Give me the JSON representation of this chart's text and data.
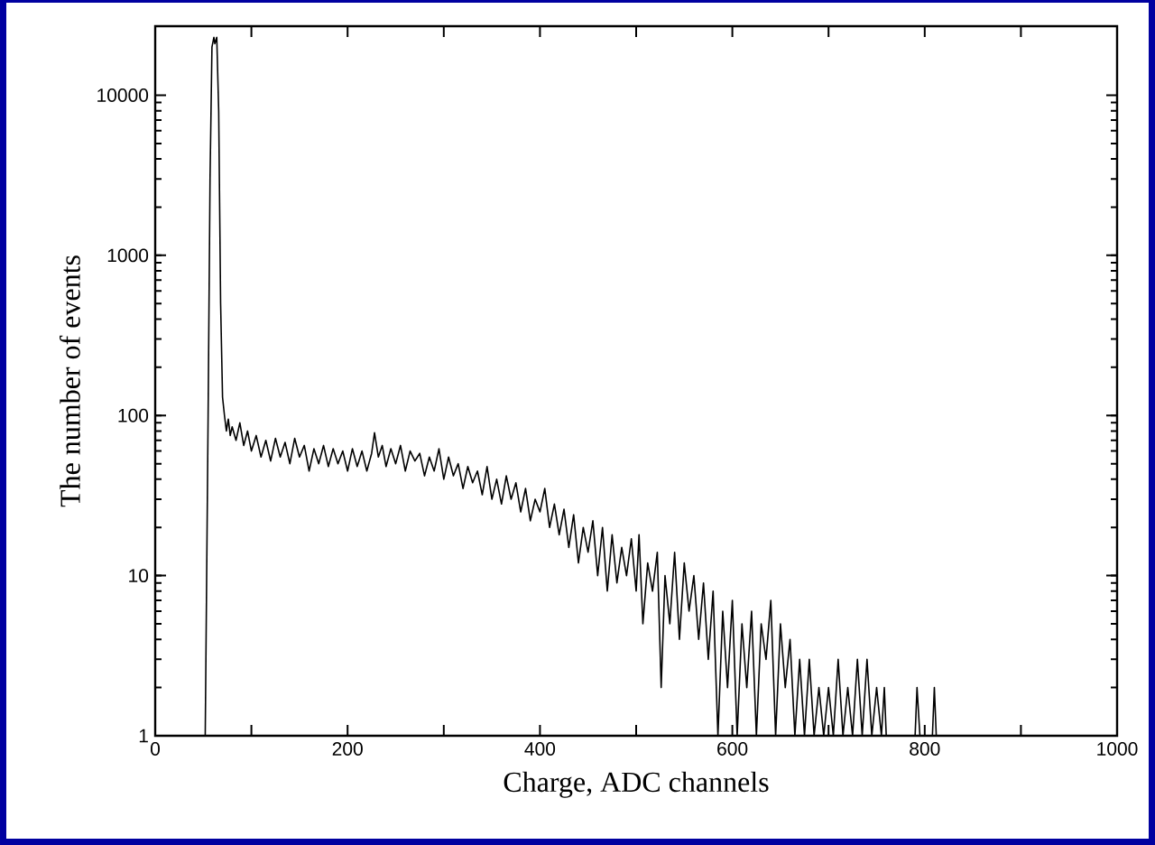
{
  "chart_data": {
    "type": "line",
    "xlabel": "Charge, ADC channels",
    "ylabel": "The number of events",
    "xlim": [
      0,
      1000
    ],
    "ylim": [
      1,
      27000
    ],
    "log": "y",
    "marker": "none",
    "line_style": "solid",
    "xticks": [
      0,
      {
        "value": 100,
        "label": null
      },
      200,
      {
        "value": 300,
        "label": null
      },
      400,
      {
        "value": 500,
        "label": null
      },
      600,
      {
        "value": 700,
        "label": null
      },
      800,
      {
        "value": 900,
        "label": null
      },
      1000
    ],
    "yticks": [
      1,
      10,
      100,
      1000,
      10000
    ],
    "series": [
      {
        "color": "#000000",
        "x": [
          52,
          55,
          57,
          59,
          61,
          62,
          64,
          66,
          68,
          70,
          72,
          74,
          76,
          78,
          80,
          84,
          88,
          92,
          96,
          100,
          105,
          110,
          115,
          120,
          125,
          130,
          135,
          140,
          145,
          150,
          155,
          160,
          165,
          170,
          175,
          180,
          185,
          190,
          195,
          200,
          205,
          210,
          215,
          220,
          225,
          228,
          232,
          236,
          240,
          245,
          250,
          255,
          260,
          265,
          270,
          275,
          280,
          285,
          290,
          295,
          300,
          305,
          310,
          315,
          320,
          325,
          330,
          335,
          340,
          345,
          350,
          355,
          360,
          365,
          370,
          375,
          380,
          385,
          390,
          395,
          400,
          405,
          410,
          415,
          420,
          425,
          430,
          435,
          440,
          445,
          450,
          455,
          460,
          465,
          470,
          475,
          480,
          485,
          490,
          495,
          500,
          503,
          507,
          512,
          517,
          522,
          526,
          530,
          535,
          540,
          545,
          550,
          555,
          560,
          565,
          570,
          575,
          580,
          585,
          590,
          595,
          600,
          605,
          610,
          615,
          620,
          625,
          630,
          635,
          640,
          645,
          650,
          655,
          660,
          665,
          670,
          675,
          680,
          685,
          690,
          695,
          700,
          705,
          710,
          715,
          720,
          725,
          730,
          735,
          740,
          745,
          750,
          755,
          758,
          760,
          790,
          792,
          795,
          808,
          810,
          812
        ],
        "values": [
          1,
          100,
          3000,
          20000,
          23000,
          21000,
          23000,
          8000,
          500,
          130,
          100,
          80,
          95,
          75,
          85,
          70,
          90,
          65,
          80,
          60,
          75,
          55,
          70,
          52,
          72,
          55,
          68,
          50,
          72,
          55,
          65,
          45,
          62,
          50,
          65,
          48,
          62,
          50,
          60,
          45,
          62,
          48,
          60,
          45,
          58,
          78,
          55,
          65,
          48,
          62,
          50,
          65,
          45,
          60,
          52,
          58,
          42,
          55,
          45,
          62,
          40,
          55,
          42,
          50,
          35,
          48,
          38,
          45,
          32,
          48,
          30,
          40,
          28,
          42,
          30,
          38,
          25,
          35,
          22,
          30,
          25,
          35,
          20,
          28,
          18,
          26,
          15,
          24,
          12,
          20,
          14,
          22,
          10,
          20,
          8,
          18,
          9,
          15,
          10,
          17,
          8,
          18,
          5,
          12,
          8,
          14,
          2,
          10,
          5,
          14,
          4,
          12,
          6,
          10,
          4,
          9,
          3,
          8,
          1,
          6,
          2,
          7,
          1,
          5,
          2,
          6,
          1,
          5,
          3,
          7,
          1,
          5,
          2,
          4,
          1,
          3,
          1,
          3,
          1,
          2,
          1,
          2,
          1,
          3,
          1,
          2,
          1,
          3,
          1,
          3,
          1,
          2,
          1,
          2,
          1,
          1,
          2,
          1,
          1,
          2,
          1
        ]
      }
    ]
  }
}
